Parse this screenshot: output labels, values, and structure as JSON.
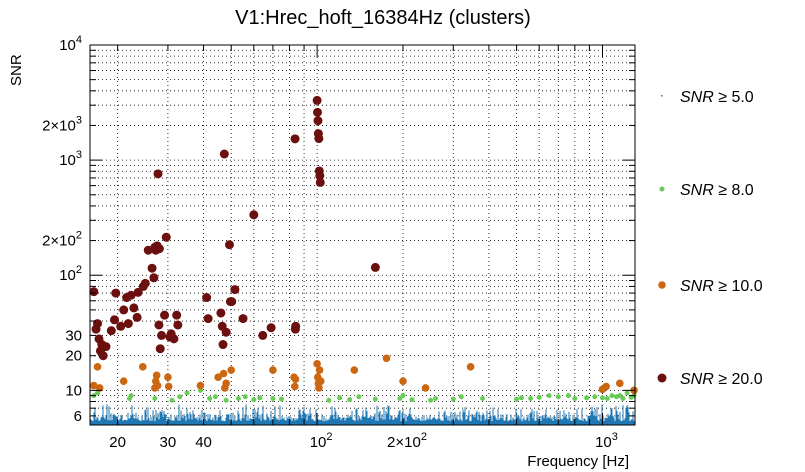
{
  "chart_data": {
    "type": "scatter",
    "title": "V1:Hrec_hoft_16384Hz (clusters)",
    "xlabel": "Frequency [Hz]",
    "ylabel": "SNR",
    "xscale": "log",
    "yscale": "log",
    "xlim": [
      16,
      1300
    ],
    "ylim": [
      5,
      10000
    ],
    "grid": true,
    "legend_placement": "right",
    "x_ticks": [
      {
        "value": 20,
        "label": "20"
      },
      {
        "value": 30,
        "label": "30"
      },
      {
        "value": 40,
        "label": "40"
      },
      {
        "value": 100,
        "label": "10",
        "exp": "2"
      },
      {
        "value": 200,
        "label": "2×10",
        "exp": "2"
      },
      {
        "value": 1000,
        "label": "10",
        "exp": "3"
      }
    ],
    "y_ticks": [
      {
        "value": 6,
        "label": "6"
      },
      {
        "value": 10,
        "label": "10"
      },
      {
        "value": 20,
        "label": "20"
      },
      {
        "value": 30,
        "label": "30"
      },
      {
        "value": 100,
        "label": "10",
        "exp": "2"
      },
      {
        "value": 200,
        "label": "2×10",
        "exp": "2"
      },
      {
        "value": 1000,
        "label": "10",
        "exp": "3"
      },
      {
        "value": 2000,
        "label": "2×10",
        "exp": "3"
      },
      {
        "value": 10000,
        "label": "10",
        "exp": "4"
      }
    ],
    "series": [
      {
        "name": "SNR ≥ 5.0",
        "legend_label": "≥ 5.0",
        "color": "#1f77b4",
        "marker": "dot",
        "points": "dense band of clusters 5 ≤ SNR < 8 across the full frequency range"
      },
      {
        "name": "SNR ≥ 8.0",
        "legend_label": "≥ 8.0",
        "color": "#66cc55",
        "marker": "circle-small",
        "points": [
          [
            16.5,
            9
          ],
          [
            17,
            9.5
          ],
          [
            22,
            8.5
          ],
          [
            22.3,
            9
          ],
          [
            27,
            8.5
          ],
          [
            31,
            8.2
          ],
          [
            33,
            8.8
          ],
          [
            35,
            9.5
          ],
          [
            39,
            10
          ],
          [
            42,
            8.5
          ],
          [
            44,
            8.8
          ],
          [
            48,
            8.2
          ],
          [
            53,
            8.5
          ],
          [
            56,
            8.8
          ],
          [
            60,
            8.3
          ],
          [
            63,
            8.6
          ],
          [
            70,
            8.5
          ],
          [
            75,
            8.4
          ],
          [
            110,
            8.2
          ],
          [
            120,
            8.6
          ],
          [
            130,
            8.3
          ],
          [
            140,
            8.8
          ],
          [
            160,
            8.4
          ],
          [
            195,
            8.5
          ],
          [
            200,
            9
          ],
          [
            215,
            8.3
          ],
          [
            250,
            8.2
          ],
          [
            260,
            8.5
          ],
          [
            300,
            8.4
          ],
          [
            320,
            8.8
          ],
          [
            380,
            8.5
          ],
          [
            500,
            8.4
          ],
          [
            520,
            8.6
          ],
          [
            560,
            8.5
          ],
          [
            600,
            8.7
          ],
          [
            650,
            9
          ],
          [
            700,
            8.8
          ],
          [
            760,
            9
          ],
          [
            800,
            8.5
          ],
          [
            880,
            8.6
          ],
          [
            940,
            8.8
          ],
          [
            1000,
            8.6
          ],
          [
            1040,
            8.5
          ],
          [
            1080,
            9
          ],
          [
            1120,
            8.8
          ],
          [
            1150,
            9
          ],
          [
            1180,
            8.5
          ],
          [
            1220,
            9.5
          ],
          [
            1260,
            8.7
          ],
          [
            1290,
            9
          ]
        ]
      },
      {
        "name": "SNR ≥ 10.0",
        "legend_label": "≥ 10.0",
        "color": "#cc6611",
        "marker": "circle-medium",
        "points": [
          [
            16.5,
            11
          ],
          [
            17,
            16
          ],
          [
            17.3,
            10.5
          ],
          [
            21,
            12
          ],
          [
            24.5,
            16
          ],
          [
            27,
            10.5
          ],
          [
            27.2,
            12
          ],
          [
            27.4,
            13.5
          ],
          [
            27.6,
            11
          ],
          [
            30,
            13
          ],
          [
            30.2,
            10.8
          ],
          [
            39,
            11
          ],
          [
            45,
            13
          ],
          [
            47,
            14
          ],
          [
            47.5,
            10.5
          ],
          [
            48,
            11.5
          ],
          [
            50,
            15
          ],
          [
            70,
            15
          ],
          [
            83,
            13
          ],
          [
            83.5,
            10.8
          ],
          [
            84,
            12.5
          ],
          [
            100,
            17
          ],
          [
            100.5,
            13
          ],
          [
            101,
            11.5
          ],
          [
            101.5,
            10.5
          ],
          [
            102,
            15
          ],
          [
            103,
            12
          ],
          [
            135,
            15
          ],
          [
            175,
            19
          ],
          [
            200,
            12
          ],
          [
            240,
            10.5
          ],
          [
            345,
            16
          ],
          [
            1000,
            10.2
          ],
          [
            1030,
            10.8
          ],
          [
            1150,
            11.5
          ],
          [
            1290,
            10
          ]
        ]
      },
      {
        "name": "SNR ≥ 20.0",
        "legend_label": "≥ 20.0",
        "color": "#6b0f0f",
        "marker": "circle-large",
        "points": [
          [
            16.5,
            72
          ],
          [
            16.8,
            34
          ],
          [
            17,
            38
          ],
          [
            17.2,
            28
          ],
          [
            17.4,
            22
          ],
          [
            17.6,
            25
          ],
          [
            17.8,
            20
          ],
          [
            18.2,
            24
          ],
          [
            19,
            33
          ],
          [
            19.5,
            41
          ],
          [
            19.7,
            70
          ],
          [
            20.5,
            36
          ],
          [
            21,
            50
          ],
          [
            21.5,
            64
          ],
          [
            21.8,
            38
          ],
          [
            22.3,
            67
          ],
          [
            22.8,
            52
          ],
          [
            23.4,
            43
          ],
          [
            23.6,
            71
          ],
          [
            24.6,
            80
          ],
          [
            25,
            85
          ],
          [
            25.6,
            165
          ],
          [
            26.4,
            115
          ],
          [
            26.8,
            95
          ],
          [
            27.2,
            165
          ],
          [
            27.5,
            180
          ],
          [
            28,
            170
          ],
          [
            27,
            175
          ],
          [
            27.7,
            760
          ],
          [
            27.9,
            37
          ],
          [
            28.2,
            23
          ],
          [
            28.5,
            30
          ],
          [
            29.2,
            45
          ],
          [
            29.6,
            214
          ],
          [
            30.5,
            29
          ],
          [
            31.5,
            28
          ],
          [
            30.8,
            31
          ],
          [
            32.2,
            45
          ],
          [
            32.5,
            37
          ],
          [
            41,
            64
          ],
          [
            41.5,
            42
          ],
          [
            46,
            47
          ],
          [
            46.5,
            36
          ],
          [
            46.8,
            25
          ],
          [
            47.3,
            1130
          ],
          [
            48,
            32
          ],
          [
            49.3,
            184
          ],
          [
            49.7,
            59
          ],
          [
            50.2,
            59
          ],
          [
            51.5,
            75
          ],
          [
            55,
            42
          ],
          [
            60,
            335
          ],
          [
            64.5,
            30
          ],
          [
            69,
            35
          ],
          [
            83.7,
            1530
          ],
          [
            83.9,
            34
          ],
          [
            84.1,
            36
          ],
          [
            100,
            3300
          ],
          [
            100.3,
            2600
          ],
          [
            100.7,
            2200
          ],
          [
            101,
            1700
          ],
          [
            101.4,
            1540
          ],
          [
            101.8,
            805
          ],
          [
            102.2,
            730
          ],
          [
            102.6,
            640
          ],
          [
            160,
            117
          ]
        ]
      }
    ]
  }
}
